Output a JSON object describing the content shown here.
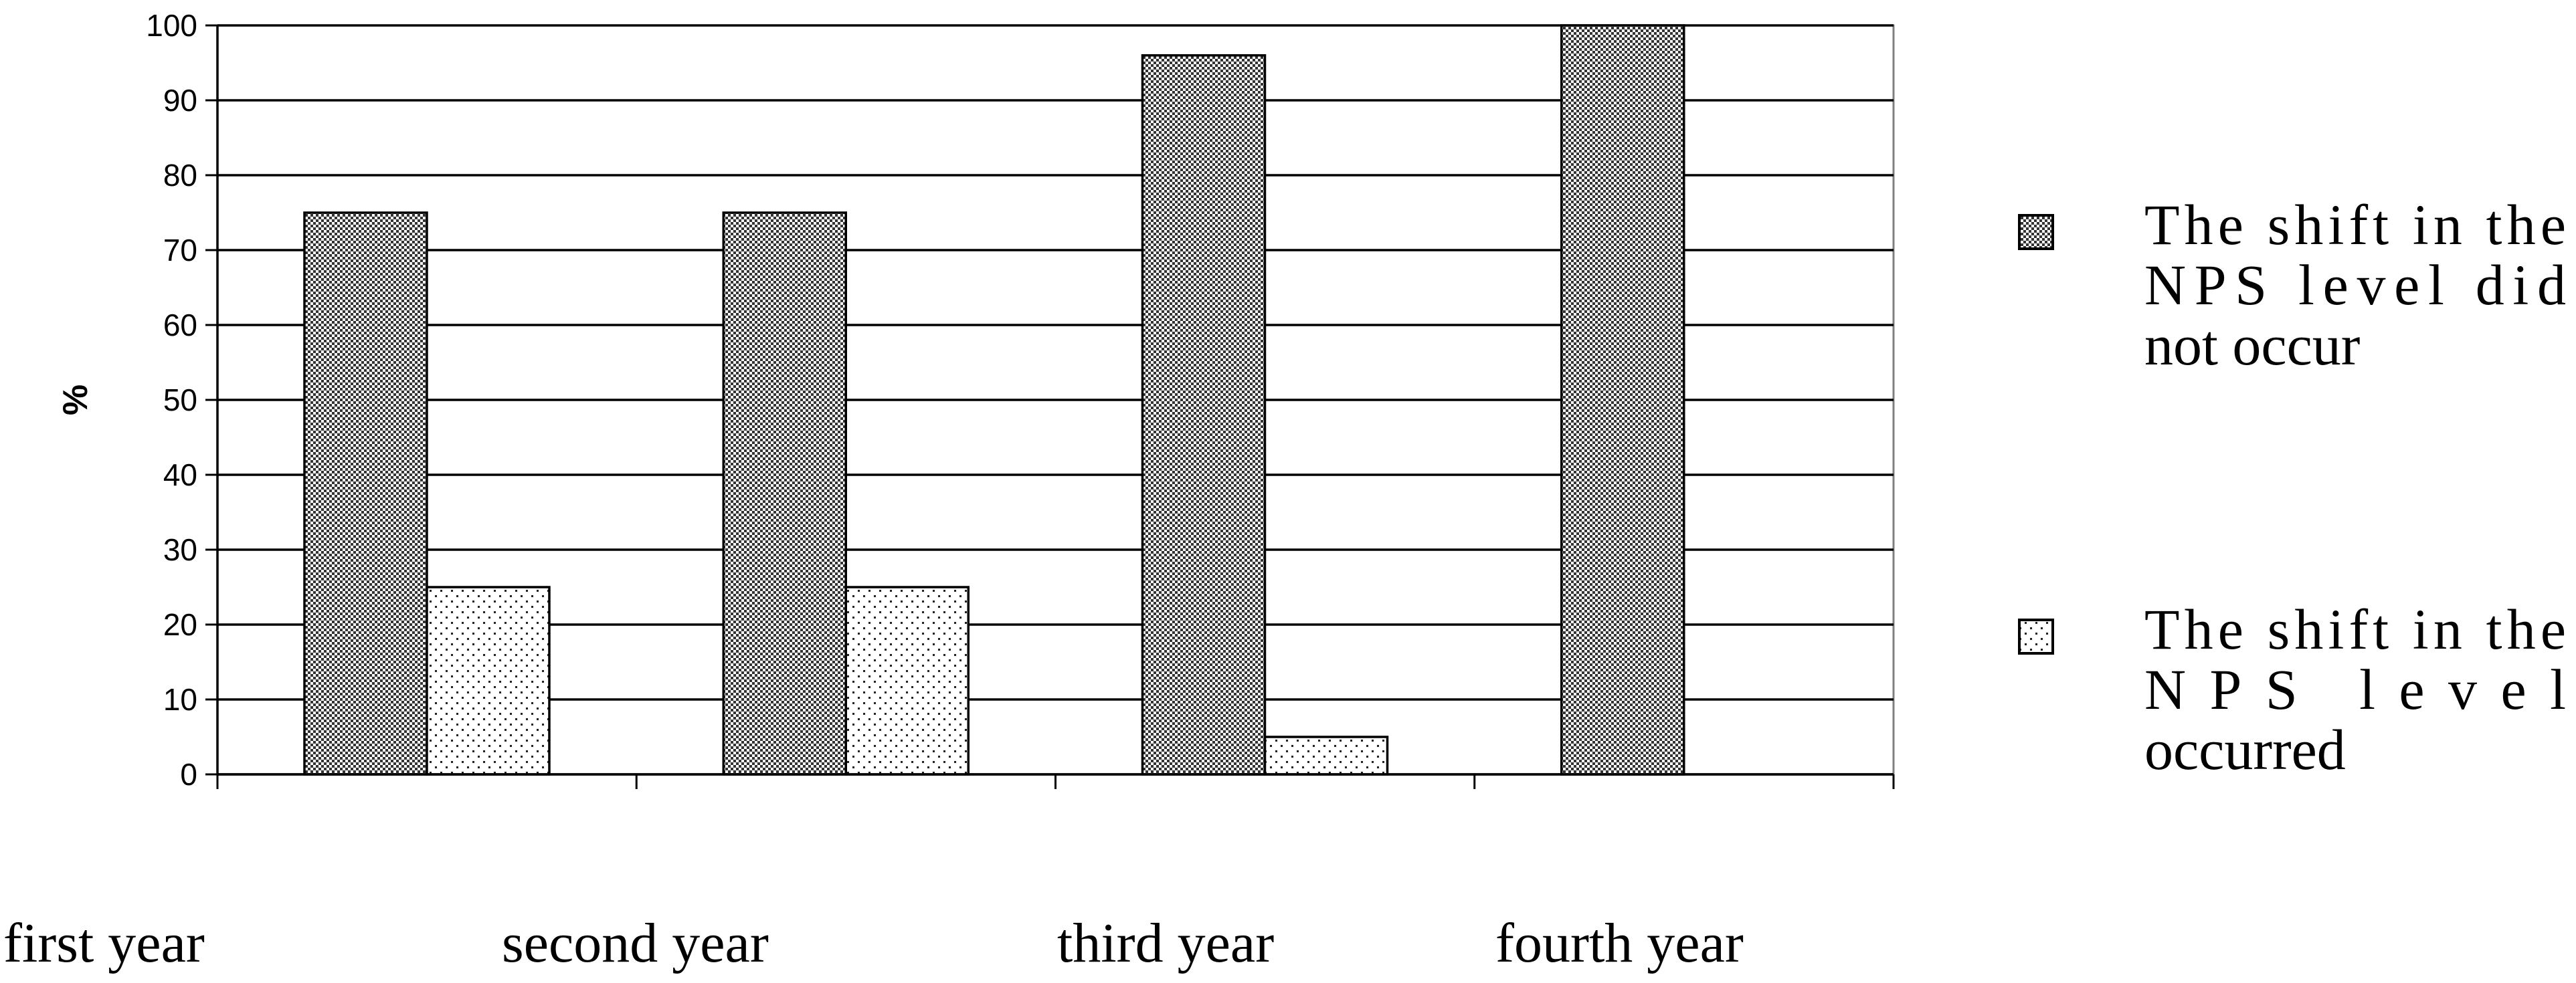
{
  "chart_data": {
    "type": "bar",
    "categories": [
      "first year",
      "second year",
      "third year",
      "fourth year"
    ],
    "series": [
      {
        "name": "The shift in the NPS level did not occur",
        "values": [
          75,
          75,
          96,
          100
        ]
      },
      {
        "name": "The shift in the NPS level occurred",
        "values": [
          25,
          25,
          5,
          0
        ]
      }
    ],
    "ylabel": "%",
    "xlabel": "",
    "ylim": [
      0,
      100
    ],
    "yticks": [
      0,
      10,
      20,
      30,
      40,
      50,
      60,
      70,
      80,
      90,
      100
    ],
    "grid": true,
    "legend_position": "right",
    "legend": [
      {
        "series": 0,
        "lines": [
          "The shift in the",
          "NPS level did",
          "not occur"
        ],
        "pattern": "checkered-dense"
      },
      {
        "series": 1,
        "lines": [
          "The shift in the",
          "NPS level",
          "occurred"
        ],
        "pattern": "dotted-sparse"
      }
    ]
  }
}
